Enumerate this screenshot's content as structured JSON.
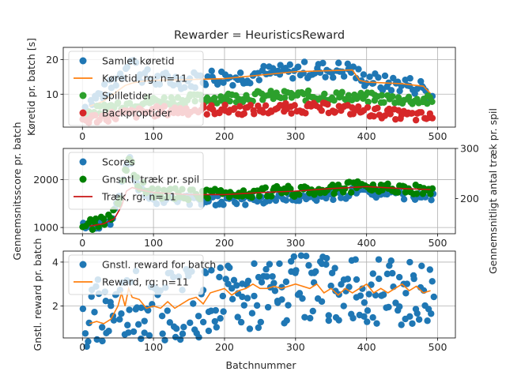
{
  "title": "Rewarder = HeuristicsReward",
  "xlabel": "Batchnummer",
  "colors": {
    "blue": "#1f77b4",
    "orange": "#ff7f0e",
    "green": "#2ca02c",
    "red": "#d62728",
    "dark_green": "#008000",
    "dark_red": "#c81414"
  },
  "chart_data": [
    {
      "type": "scatter",
      "ylabel": "Køretid pr. batch [s]",
      "xlim": [
        -27,
        525
      ],
      "ylim": [
        0.5,
        23.5
      ],
      "xticks": [
        0,
        100,
        200,
        300,
        400,
        500
      ],
      "yticks": [
        10,
        20
      ],
      "grid": true,
      "legend_position": "upper-left",
      "series": [
        {
          "name": "Samlet køretid",
          "kind": "scatter",
          "color": "#1f77b4",
          "x": [
            0,
            20,
            40,
            50,
            60,
            65,
            80,
            100,
            120,
            150,
            180,
            200,
            220,
            250,
            280,
            300,
            330,
            360,
            380,
            395,
            400,
            420,
            450,
            480,
            490
          ],
          "y": [
            6,
            9,
            12,
            15,
            17,
            22,
            16,
            14,
            14,
            14,
            15,
            15,
            15,
            16,
            16,
            17,
            17,
            17,
            17,
            14,
            15,
            13,
            13,
            12,
            9
          ]
        },
        {
          "name": "Køretid, rg: n=11",
          "kind": "line",
          "color": "#ff7f0e",
          "x": [
            10,
            30,
            50,
            60,
            70,
            80,
            100,
            150,
            200,
            250,
            300,
            350,
            380,
            390,
            400,
            450,
            480,
            490
          ],
          "y": [
            6.5,
            8,
            11,
            12.5,
            13.2,
            13.6,
            14,
            14.2,
            14.5,
            15.5,
            16.5,
            16.8,
            17,
            14,
            13.5,
            13,
            12.3,
            10.2
          ]
        },
        {
          "name": "Spilletider",
          "kind": "scatter",
          "color": "#2ca02c",
          "x": [
            0,
            50,
            100,
            150,
            200,
            250,
            300,
            350,
            400,
            450,
            500
          ],
          "y": [
            4,
            7,
            8,
            8.5,
            9,
            9.5,
            9.5,
            9.5,
            9,
            8.5,
            8
          ]
        },
        {
          "name": "Backproptider",
          "kind": "scatter",
          "color": "#d62728",
          "x": [
            0,
            50,
            100,
            150,
            200,
            250,
            300,
            350,
            400,
            450,
            500
          ],
          "y": [
            2.5,
            4,
            5,
            5.5,
            5.5,
            5.5,
            6,
            6,
            5,
            4,
            3
          ]
        }
      ]
    },
    {
      "type": "scatter",
      "ylabel": "Gennemsnitsscore pr. batch",
      "ylabel_right": "Gennemsnitligt antal træk pr. spil",
      "xlim": [
        -27,
        525
      ],
      "ylim": [
        870,
        2650
      ],
      "ylim_right": [
        130,
        300
      ],
      "xticks": [
        0,
        100,
        200,
        300,
        400,
        500
      ],
      "yticks": [
        1000,
        2000
      ],
      "yticks_right": [
        200,
        300
      ],
      "grid": true,
      "legend_position": "upper-left",
      "series": [
        {
          "name": "Scores",
          "kind": "scatter",
          "color": "#1f77b4",
          "x": [
            0,
            20,
            40,
            50,
            60,
            65,
            80,
            100,
            150,
            200,
            250,
            300,
            350,
            400,
            450,
            500
          ],
          "y": [
            1000,
            1050,
            1150,
            1500,
            2200,
            2500,
            1750,
            1600,
            1550,
            1550,
            1600,
            1620,
            1680,
            1720,
            1680,
            1660
          ]
        },
        {
          "name": "Gnsntl. træk pr. spil",
          "kind": "scatter",
          "color": "#008000",
          "x": [
            0,
            20,
            40,
            50,
            60,
            65,
            80,
            100,
            150,
            200,
            250,
            300,
            350,
            400,
            450,
            490
          ],
          "y": [
            145,
            150,
            160,
            185,
            250,
            290,
            225,
            212,
            208,
            208,
            212,
            215,
            220,
            224,
            220,
            218
          ]
        },
        {
          "name": "Træk, rg: n=11",
          "kind": "line",
          "color": "#c81414",
          "x": [
            10,
            30,
            45,
            55,
            62,
            70,
            80,
            100,
            150,
            200,
            250,
            300,
            350,
            400,
            450,
            490
          ],
          "y": [
            145,
            150,
            160,
            185,
            215,
            222,
            218,
            212,
            208,
            208,
            212,
            215,
            220,
            224,
            220,
            218
          ]
        }
      ]
    },
    {
      "type": "scatter",
      "ylabel": "Gnstl. reward pr. batch",
      "xlabel": "Batchnummer",
      "xlim": [
        -27,
        525
      ],
      "ylim": [
        0.55,
        4.5
      ],
      "xticks": [
        0,
        100,
        200,
        300,
        400,
        500
      ],
      "yticks": [
        2,
        4
      ],
      "grid": true,
      "legend_position": "upper-left",
      "series": [
        {
          "name": "Gnstl. reward for batch",
          "kind": "scatter",
          "color": "#1f77b4",
          "x": [
            0,
            50,
            100,
            150,
            200,
            250,
            300,
            350,
            400,
            450,
            500
          ],
          "y": [
            1.2,
            2.2,
            2.0,
            2.1,
            2.3,
            2.6,
            2.7,
            2.7,
            2.6,
            2.7,
            2.7
          ]
        },
        {
          "name": "Reward, rg: n=11",
          "kind": "line",
          "color": "#ff7f0e",
          "x": [
            10,
            20,
            30,
            40,
            50,
            55,
            60,
            65,
            70,
            80,
            90,
            100,
            110,
            120,
            130,
            140,
            150,
            160,
            170,
            180,
            190,
            200,
            210,
            220,
            230,
            240,
            250,
            260,
            270,
            280,
            290,
            300,
            310,
            320,
            330,
            340,
            350,
            360,
            370,
            380,
            390,
            400,
            410,
            420,
            430,
            440,
            450,
            460,
            470,
            480,
            490
          ],
          "y": [
            1.2,
            1.3,
            1.2,
            1.4,
            2.0,
            2.6,
            2.0,
            2.8,
            2.4,
            2.3,
            1.9,
            2.0,
            1.9,
            2.2,
            1.9,
            2.1,
            2.3,
            2.4,
            2.1,
            2.6,
            2.7,
            2.8,
            2.5,
            2.7,
            2.8,
            3.0,
            2.8,
            2.8,
            2.9,
            2.8,
            2.9,
            3.0,
            2.9,
            2.8,
            3.0,
            2.6,
            2.8,
            2.5,
            2.8,
            2.6,
            2.8,
            3.0,
            2.6,
            2.8,
            2.6,
            2.8,
            3.0,
            2.7,
            2.9,
            2.6,
            2.7
          ]
        }
      ]
    }
  ]
}
